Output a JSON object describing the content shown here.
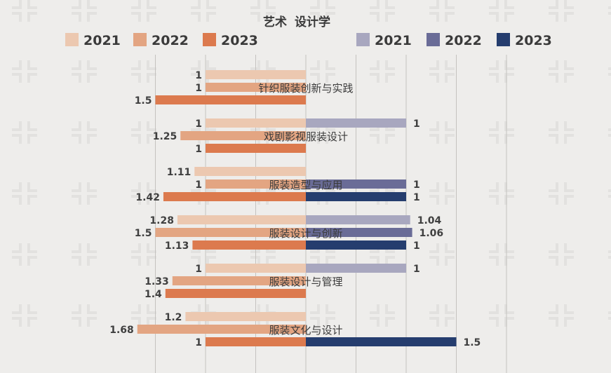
{
  "chart_data": {
    "type": "bar",
    "orientation": "horizontal-butterfly",
    "title_left": "艺术",
    "title_right": "设计学",
    "categories": [
      "针织服装创新与实践",
      "戏剧影视服装设计",
      "服装造型与应用",
      "服装设计与创新",
      "服装设计与管理",
      "服装文化与设计"
    ],
    "left_group": {
      "name": "艺术",
      "series": [
        {
          "name": "2021",
          "color": "#ecc8b0",
          "values": [
            1,
            1,
            1.11,
            1.28,
            1,
            1.2
          ]
        },
        {
          "name": "2022",
          "color": "#e3a582",
          "values": [
            1,
            1.25,
            1,
            1.5,
            1.33,
            1.68
          ]
        },
        {
          "name": "2023",
          "color": "#dc7a4e",
          "values": [
            1.5,
            1,
            1.42,
            1.13,
            1.4,
            1
          ]
        }
      ]
    },
    "right_group": {
      "name": "设计学",
      "series": [
        {
          "name": "2021",
          "color": "#a8a7bf",
          "values": [
            null,
            1,
            null,
            1.04,
            1,
            null
          ]
        },
        {
          "name": "2022",
          "color": "#6a6c97",
          "values": [
            null,
            null,
            1,
            1.06,
            null,
            null
          ]
        },
        {
          "name": "2023",
          "color": "#253d6e",
          "values": [
            null,
            null,
            1,
            1,
            null,
            1.5
          ]
        }
      ]
    },
    "xlim": [
      -1.8,
      2.2
    ],
    "grid": true,
    "legend_position": "top"
  }
}
